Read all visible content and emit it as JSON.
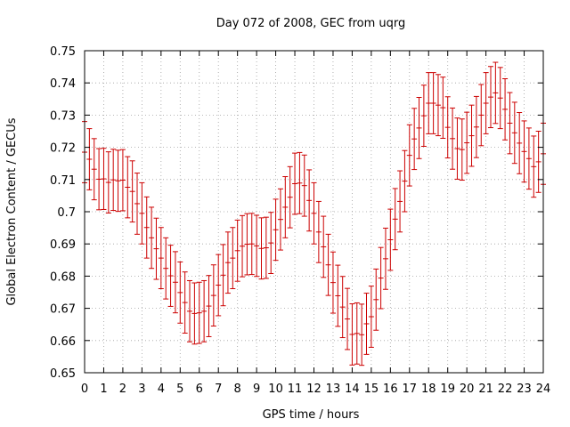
{
  "chart_data": {
    "type": "scatter",
    "title": "Day 072 of 2008, GEC from uqrg",
    "xlabel": "GPS time / hours",
    "ylabel": "Global Electron Content / GECUs",
    "xlim": [
      0,
      24
    ],
    "ylim": [
      0.65,
      0.75
    ],
    "x_ticks": [
      0,
      1,
      2,
      3,
      4,
      5,
      6,
      7,
      8,
      9,
      10,
      11,
      12,
      13,
      14,
      15,
      16,
      17,
      18,
      19,
      20,
      21,
      22,
      23,
      24
    ],
    "y_ticks": [
      0.65,
      0.66,
      0.67,
      0.68,
      0.69,
      0.7,
      0.71,
      0.72,
      0.73,
      0.74,
      0.75
    ],
    "x_tick_labels": [
      "0",
      "1",
      "2",
      "3",
      "4",
      "5",
      "6",
      "7",
      "8",
      "9",
      "10",
      "11",
      "12",
      "13",
      "14",
      "15",
      "16",
      "17",
      "18",
      "19",
      "20",
      "21",
      "22",
      "23",
      "24"
    ],
    "y_tick_labels": [
      "0.65",
      "0.66",
      "0.67",
      "0.68",
      "0.69",
      "0.7",
      "0.71",
      "0.72",
      "0.73",
      "0.74",
      "0.75"
    ],
    "grid": true,
    "series": [
      {
        "color": "#cc0000",
        "x": [
          0,
          0.25,
          0.5,
          0.75,
          1,
          1.25,
          1.5,
          1.75,
          2,
          2.25,
          2.5,
          2.75,
          3,
          3.25,
          3.5,
          3.75,
          4,
          4.25,
          4.5,
          4.75,
          5,
          5.25,
          5.5,
          5.75,
          6,
          6.25,
          6.5,
          6.75,
          7,
          7.25,
          7.5,
          7.75,
          8,
          8.25,
          8.5,
          8.75,
          9,
          9.25,
          9.5,
          9.75,
          10,
          10.25,
          10.5,
          10.75,
          11,
          11.25,
          11.5,
          11.75,
          12,
          12.25,
          12.5,
          12.75,
          13,
          13.25,
          13.5,
          13.75,
          14,
          14.25,
          14.5,
          14.75,
          15,
          15.25,
          15.5,
          15.75,
          16,
          16.25,
          16.5,
          16.75,
          17,
          17.25,
          17.5,
          17.75,
          18,
          18.25,
          18.5,
          18.75,
          19,
          19.25,
          19.5,
          19.75,
          20,
          20.25,
          20.5,
          20.75,
          21,
          21.25,
          21.5,
          21.75,
          22,
          22.25,
          22.5,
          22.75,
          23,
          23.25,
          23.5,
          23.75,
          24
        ],
        "y": [
          0.7185,
          0.7163,
          0.7132,
          0.7101,
          0.7102,
          0.7091,
          0.7099,
          0.7096,
          0.7098,
          0.7076,
          0.7063,
          0.7025,
          0.6995,
          0.6951,
          0.6919,
          0.6885,
          0.6856,
          0.6824,
          0.6801,
          0.6781,
          0.6749,
          0.6718,
          0.6691,
          0.6684,
          0.6686,
          0.6691,
          0.6707,
          0.674,
          0.6772,
          0.6803,
          0.6842,
          0.6856,
          0.6879,
          0.6893,
          0.6899,
          0.69,
          0.6894,
          0.6886,
          0.6888,
          0.6903,
          0.6944,
          0.6976,
          0.7014,
          0.7045,
          0.7087,
          0.7089,
          0.7081,
          0.7035,
          0.6995,
          0.6937,
          0.6891,
          0.6835,
          0.678,
          0.6739,
          0.6704,
          0.6667,
          0.6619,
          0.6622,
          0.6618,
          0.6652,
          0.6674,
          0.6727,
          0.6794,
          0.6854,
          0.6913,
          0.6977,
          0.7032,
          0.7095,
          0.7175,
          0.7226,
          0.726,
          0.7298,
          0.7337,
          0.7337,
          0.7331,
          0.7323,
          0.7262,
          0.7227,
          0.7196,
          0.7193,
          0.7214,
          0.7236,
          0.7263,
          0.73,
          0.7337,
          0.7356,
          0.7369,
          0.7353,
          0.7318,
          0.7275,
          0.7245,
          0.7213,
          0.7187,
          0.7165,
          0.714,
          0.7155,
          0.718
        ],
        "error": [
          0.0095,
          0.0095,
          0.0095,
          0.0095,
          0.0095,
          0.0095,
          0.0095,
          0.0095,
          0.0095,
          0.0095,
          0.0095,
          0.0095,
          0.0095,
          0.0095,
          0.0095,
          0.0095,
          0.0095,
          0.0095,
          0.0095,
          0.0095,
          0.0095,
          0.0095,
          0.0095,
          0.0095,
          0.0095,
          0.0095,
          0.0095,
          0.0095,
          0.0095,
          0.0095,
          0.0095,
          0.0095,
          0.0095,
          0.0095,
          0.0095,
          0.0095,
          0.0095,
          0.0095,
          0.0095,
          0.0095,
          0.0095,
          0.0095,
          0.0095,
          0.0095,
          0.0095,
          0.0095,
          0.0095,
          0.0095,
          0.0095,
          0.0095,
          0.0095,
          0.0095,
          0.0095,
          0.0095,
          0.0095,
          0.0095,
          0.0095,
          0.0095,
          0.0095,
          0.0095,
          0.0095,
          0.0095,
          0.0095,
          0.0095,
          0.0095,
          0.0095,
          0.0095,
          0.0095,
          0.0095,
          0.0095,
          0.0095,
          0.0095,
          0.0095,
          0.0095,
          0.0095,
          0.0095,
          0.0095,
          0.0095,
          0.0095,
          0.0095,
          0.0095,
          0.0095,
          0.0095,
          0.0095,
          0.0095,
          0.0095,
          0.0095,
          0.0095,
          0.0095,
          0.0095,
          0.0095,
          0.0095,
          0.0095,
          0.0095,
          0.0095,
          0.0095,
          0.0095
        ]
      }
    ]
  },
  "colors": {
    "data": "#cc0000",
    "grid": "#a0a0a0",
    "axis": "#000000",
    "background": "#ffffff"
  }
}
